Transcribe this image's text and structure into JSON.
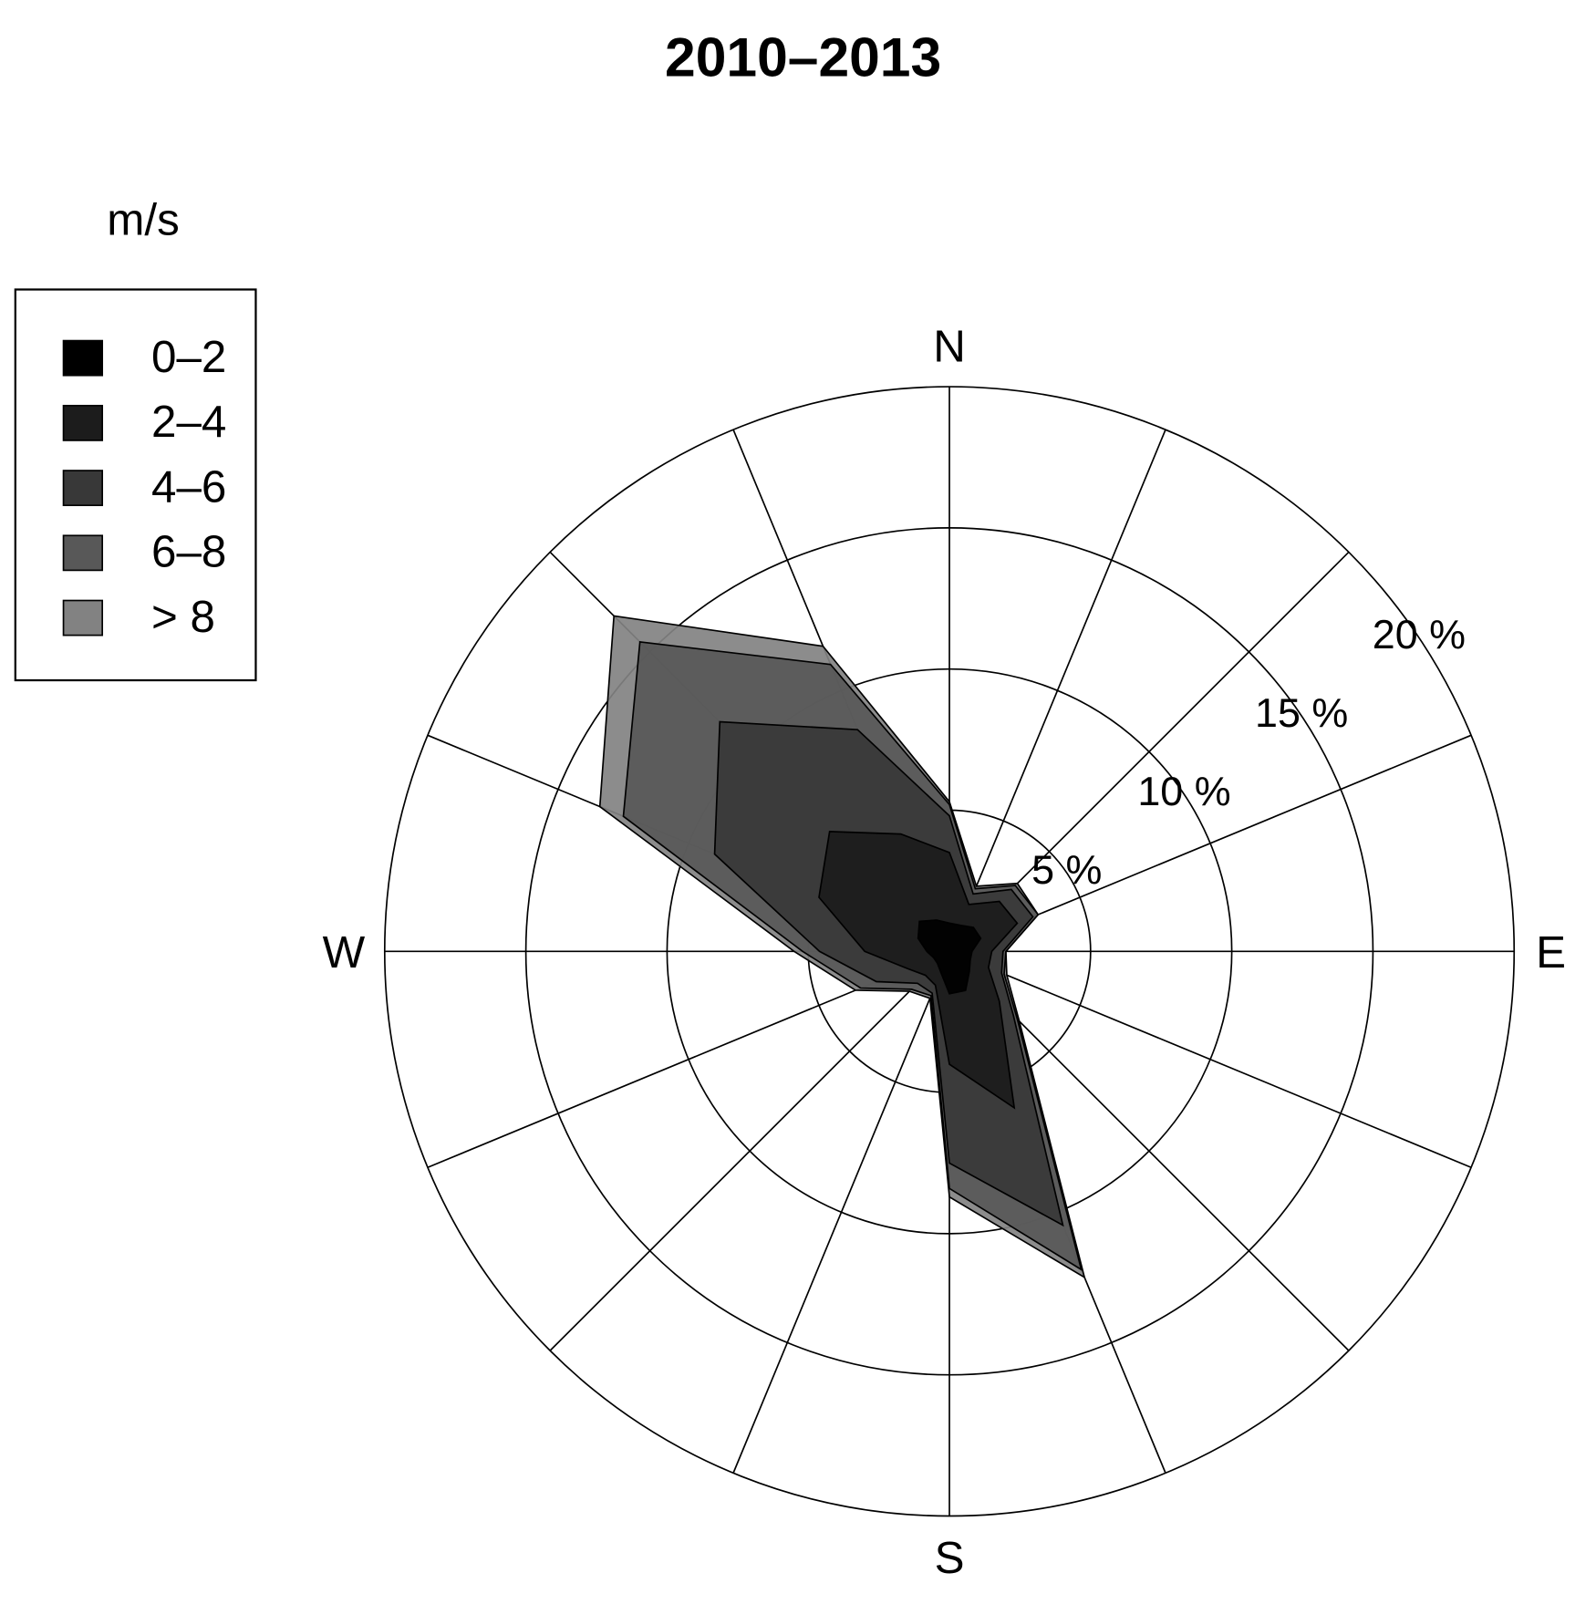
{
  "chart_data": {
    "type": "windrose",
    "title": "2010–2013",
    "legend_title": "m/s",
    "categories": [
      "N",
      null,
      null,
      null,
      "E",
      null,
      null,
      null,
      "S",
      null,
      null,
      null,
      "W",
      null,
      null,
      null
    ],
    "rlim": [
      0,
      20
    ],
    "rticks": [
      {
        "value": 5,
        "label": "5 %"
      },
      {
        "value": 10,
        "label": "10 %"
      },
      {
        "value": 15,
        "label": "15 %"
      },
      {
        "value": 20,
        "label": "20 %"
      }
    ],
    "grid": true,
    "series": [
      {
        "name": "0–2",
        "color": "#000000",
        "values": [
          1,
          1,
          1.2,
          1.2,
          0.8,
          0.8,
          1,
          1.5,
          1.5,
          0.8,
          0.6,
          0.6,
          0.8,
          1.2,
          1.5,
          1.2
        ]
      },
      {
        "name": "2–4",
        "color": "#1c1c1c",
        "values": [
          2.5,
          0.8,
          1.3,
          1.4,
          0.7,
          0.7,
          1.5,
          4.5,
          2.5,
          0.5,
          0.6,
          1,
          2.2,
          3.8,
          4.5,
          3.3
        ]
      },
      {
        "name": "4–6",
        "color": "#383838",
        "values": [
          1.3,
          0.4,
          0.6,
          0.6,
          0.4,
          0.5,
          0.7,
          4.5,
          3.5,
          0.3,
          0.4,
          1.2,
          1.6,
          4,
          5.5,
          4
        ]
      },
      {
        "name": "6–8",
        "color": "#585858",
        "values": [
          0.4,
          0.2,
          0.2,
          0.2,
          0.1,
          0.1,
          0.2,
          1.7,
          0.9,
          0.1,
          0.3,
          0.6,
          0.6,
          3.5,
          4,
          2.5
        ]
      },
      {
        "name": "> 8",
        "color": "#828282",
        "values": [
          0.1,
          0.1,
          0.1,
          0,
          0,
          0.1,
          0.1,
          0.3,
          0.3,
          0.1,
          0.1,
          0.2,
          0.3,
          0.9,
          1.3,
          0.7
        ]
      }
    ],
    "legend": "top-left"
  }
}
